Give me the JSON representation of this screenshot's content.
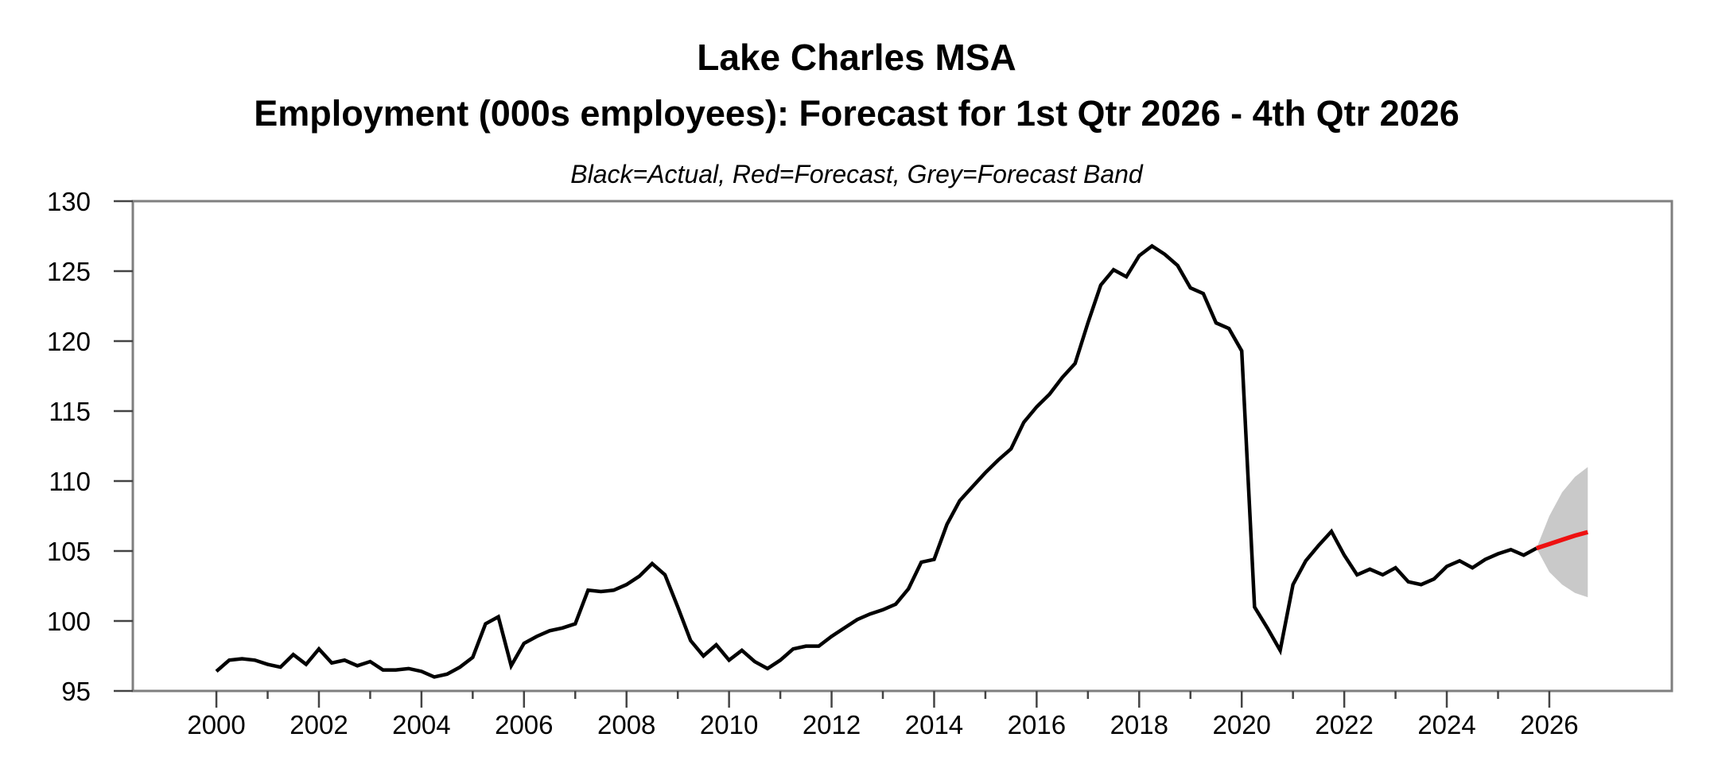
{
  "title": {
    "line1": "Lake Charles MSA",
    "line2": "Employment (000s employees): Forecast for 1st Qtr 2026 - 4th Qtr 2026"
  },
  "subtitle": "Black=Actual, Red=Forecast, Grey=Forecast Band",
  "colors": {
    "actual": "#000000",
    "forecast": "#ee1111",
    "band": "#c9c9c9",
    "frame": "#7f7f7f",
    "tick": "#444444",
    "label": "#000000"
  },
  "chart_data": {
    "type": "line",
    "title": "Lake Charles MSA — Employment (000s employees): Forecast for 1st Qtr 2026 - 4th Qtr 2026",
    "legend_note": "Black=Actual, Red=Forecast, Grey=Forecast Band",
    "xlabel": "",
    "ylabel": "Employment (000s employees)",
    "xlim": [
      1998.37,
      2028.39
    ],
    "ylim": [
      95,
      130
    ],
    "y_ticks": [
      95,
      100,
      105,
      110,
      115,
      120,
      125,
      130
    ],
    "x_major_ticks": [
      2000,
      2002,
      2004,
      2006,
      2008,
      2010,
      2012,
      2014,
      2016,
      2018,
      2020,
      2022,
      2024,
      2026
    ],
    "x_minor_ticks": [
      2001,
      2003,
      2005,
      2007,
      2009,
      2011,
      2013,
      2015,
      2017,
      2019,
      2021,
      2023,
      2025
    ],
    "grid": false,
    "series": [
      {
        "name": "Actual",
        "color_key": "actual",
        "x_start": 2000.0,
        "x_step": 0.25,
        "values": [
          96.4,
          97.2,
          97.3,
          97.2,
          96.9,
          96.7,
          97.6,
          96.9,
          98.0,
          97.0,
          97.2,
          96.8,
          97.1,
          96.5,
          96.5,
          96.6,
          96.4,
          96.0,
          96.2,
          96.7,
          97.4,
          99.8,
          100.3,
          96.8,
          98.4,
          98.9,
          99.3,
          99.5,
          99.8,
          102.2,
          102.1,
          102.2,
          102.6,
          103.2,
          104.1,
          103.3,
          101.0,
          98.6,
          97.5,
          98.3,
          97.2,
          97.9,
          97.1,
          96.6,
          97.2,
          98.0,
          98.2,
          98.2,
          98.9,
          99.5,
          100.1,
          100.5,
          100.8,
          101.2,
          102.3,
          104.2,
          104.4,
          106.9,
          108.6,
          109.6,
          110.6,
          111.5,
          112.3,
          114.2,
          115.3,
          116.2,
          117.4,
          118.4,
          121.3,
          124.0,
          125.1,
          124.6,
          126.1,
          126.8,
          126.2,
          125.4,
          123.8,
          123.4,
          121.3,
          120.9,
          119.3,
          101.0,
          99.5,
          97.9,
          102.6,
          104.3,
          105.4,
          106.4,
          104.7,
          103.3,
          103.7,
          103.3,
          103.8,
          102.8,
          102.6,
          103.0,
          103.9,
          104.3,
          103.8,
          104.4,
          104.8,
          105.1,
          104.7,
          105.2
        ]
      },
      {
        "name": "Forecast",
        "color_key": "forecast",
        "x_start": 2025.75,
        "x_step": 0.25,
        "values": [
          105.2,
          105.5,
          105.8,
          106.1,
          106.35
        ]
      }
    ],
    "band": {
      "name": "Forecast Band",
      "color_key": "band",
      "x_start": 2025.75,
      "x_step": 0.25,
      "upper": [
        105.2,
        107.5,
        109.2,
        110.3,
        111.0
      ],
      "lower": [
        105.2,
        103.5,
        102.6,
        102.0,
        101.7
      ]
    }
  }
}
